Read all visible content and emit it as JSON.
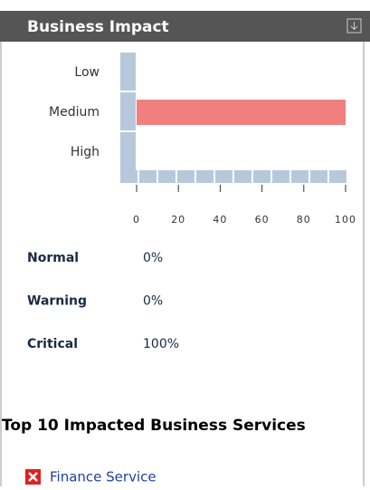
{
  "header": {
    "title": "Business Impact"
  },
  "chart_data": {
    "type": "bar",
    "orientation": "horizontal",
    "categories": [
      "Low",
      "Medium",
      "High"
    ],
    "values": [
      0,
      100,
      0
    ],
    "color": "#f08080",
    "xlim": [
      0,
      100
    ],
    "xticks": [
      0,
      20,
      40,
      60,
      80,
      100
    ]
  },
  "stats": [
    {
      "label": "Normal",
      "value": "0%"
    },
    {
      "label": "Warning",
      "value": "0%"
    },
    {
      "label": "Critical",
      "value": "100%"
    }
  ],
  "services": {
    "title": "Top 10 Impacted Business Services",
    "items": [
      "Finance Service"
    ]
  }
}
